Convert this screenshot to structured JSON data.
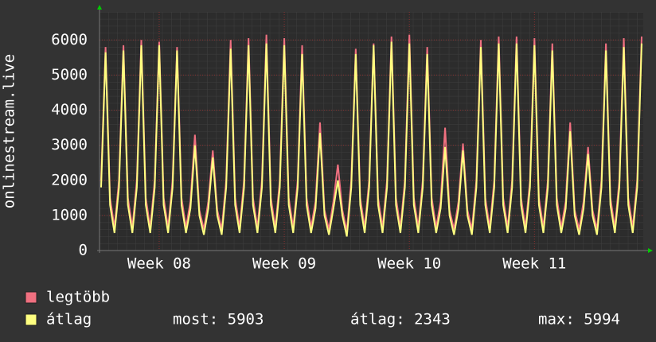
{
  "chart_data": {
    "type": "line",
    "y_label": "onlinestream.live",
    "categories": [
      null,
      null,
      null,
      null,
      null,
      null,
      null,
      null,
      null,
      null,
      null,
      null,
      null,
      "Week 08",
      null,
      null,
      null,
      null,
      null,
      null,
      null,
      null,
      null,
      null,
      null,
      null,
      null,
      null,
      null,
      null,
      null,
      null,
      null,
      null,
      null,
      null,
      null,
      null,
      null,
      null,
      null,
      "Week 09",
      null,
      null,
      null,
      null,
      null,
      null,
      null,
      null,
      null,
      null,
      null,
      null,
      null,
      null,
      null,
      null,
      null,
      null,
      null,
      null,
      null,
      null,
      null,
      null,
      null,
      null,
      null,
      "Week 10",
      null,
      null,
      null,
      null,
      null,
      null,
      null,
      null,
      null,
      null,
      null,
      null,
      null,
      null,
      null,
      null,
      null,
      null,
      null,
      null,
      null,
      null,
      null,
      null,
      null,
      null,
      null,
      "Week 11",
      null,
      null,
      null,
      null,
      null,
      null,
      null,
      null,
      null,
      null,
      null,
      null,
      null,
      null,
      null,
      null,
      null,
      null,
      null,
      null,
      null,
      null,
      null,
      null
    ],
    "series": [
      {
        "name": "legtöbb",
        "color": "#f07080",
        "values": [
          2000,
          5800,
          1500,
          650,
          2000,
          5850,
          1500,
          650,
          2000,
          6000,
          1500,
          650,
          2000,
          5950,
          1500,
          650,
          2000,
          5800,
          1500,
          650,
          1400,
          3300,
          1150,
          600,
          1400,
          2850,
          1150,
          600,
          2000,
          6000,
          1500,
          650,
          2000,
          6050,
          1500,
          650,
          2000,
          6150,
          1500,
          650,
          2000,
          6050,
          1500,
          650,
          2000,
          5850,
          1500,
          650,
          1400,
          3650,
          1150,
          600,
          1400,
          2450,
          1150,
          550,
          2000,
          5750,
          1500,
          650,
          2000,
          5900,
          1500,
          650,
          2000,
          6100,
          1500,
          650,
          2000,
          6150,
          1500,
          650,
          2000,
          5800,
          1500,
          650,
          1400,
          3500,
          1150,
          600,
          1400,
          3050,
          1150,
          600,
          2000,
          6000,
          1500,
          650,
          2000,
          6100,
          1500,
          650,
          2000,
          6100,
          1500,
          650,
          2000,
          6050,
          1500,
          650,
          2000,
          5900,
          1500,
          650,
          1400,
          3650,
          1150,
          600,
          1400,
          2950,
          1150,
          600,
          2000,
          5900,
          1500,
          650,
          2000,
          6050,
          1500,
          650,
          2000,
          6100
        ]
      },
      {
        "name": "átlag",
        "color": "#ffff80",
        "values": [
          1800,
          5650,
          1300,
          500,
          1800,
          5700,
          1300,
          500,
          1800,
          5850,
          1300,
          500,
          1800,
          5850,
          1300,
          500,
          1800,
          5700,
          1300,
          500,
          1200,
          3000,
          1000,
          450,
          1200,
          2650,
          1000,
          450,
          1800,
          5750,
          1300,
          500,
          1800,
          5850,
          1300,
          500,
          1800,
          5900,
          1300,
          500,
          1800,
          5850,
          1300,
          500,
          1800,
          5600,
          1300,
          500,
          1200,
          3350,
          1000,
          450,
          1200,
          2000,
          1000,
          400,
          1800,
          5600,
          1300,
          500,
          1800,
          5850,
          1300,
          500,
          1800,
          5950,
          1300,
          500,
          1800,
          5900,
          1300,
          500,
          1800,
          5600,
          1300,
          500,
          1200,
          2950,
          1000,
          450,
          1200,
          2850,
          1000,
          450,
          1800,
          5800,
          1300,
          500,
          1800,
          5900,
          1300,
          500,
          1800,
          5900,
          1300,
          500,
          1800,
          5850,
          1300,
          500,
          1800,
          5700,
          1300,
          500,
          1200,
          3400,
          1000,
          450,
          1200,
          2750,
          1000,
          450,
          1800,
          5700,
          1300,
          500,
          1800,
          5800,
          1300,
          500,
          1800,
          5900
        ]
      }
    ],
    "annotations": [
      "most: 5903",
      "átlag: 2343",
      "max: 5994"
    ],
    "ylim": [
      0,
      6800
    ],
    "yticks": [
      0,
      1000,
      2000,
      3000,
      4000,
      5000,
      6000
    ],
    "grid": true
  }
}
